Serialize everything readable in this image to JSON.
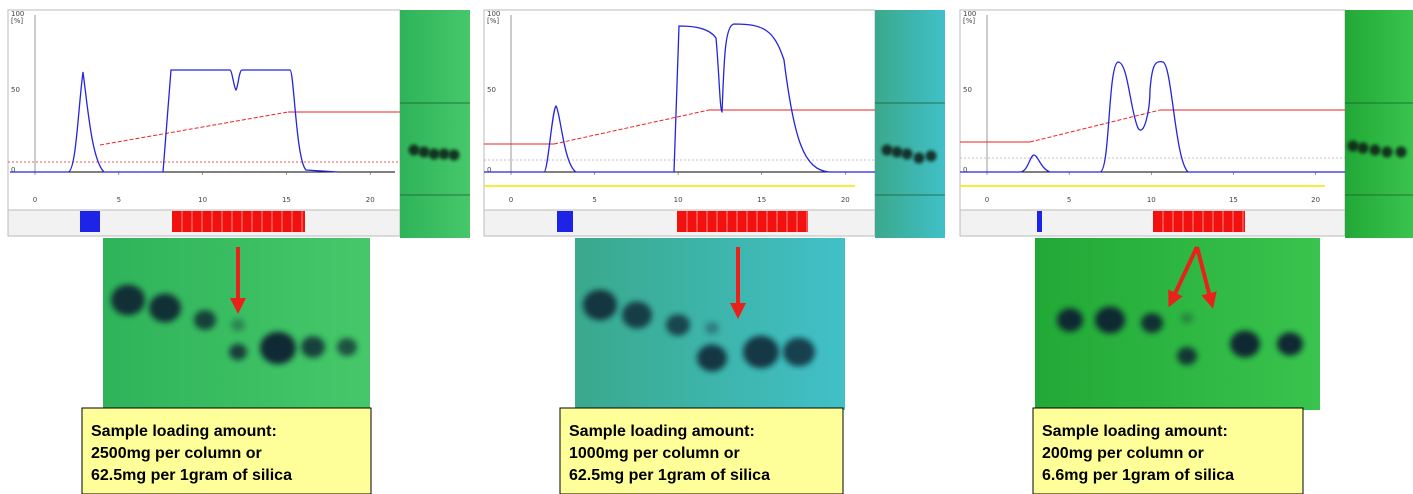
{
  "panels": [
    {
      "y_axis_labels": [
        "100",
        "[%]",
        "50",
        "0"
      ],
      "x_axis_labels": [
        "0",
        "5",
        "10",
        "15",
        "20"
      ],
      "caption": [
        "Sample loading amount:",
        "2500mg per column or",
        "62.5mg per 1gram of silica"
      ]
    },
    {
      "y_axis_labels": [
        "100",
        "[%]",
        "50",
        "0"
      ],
      "x_axis_labels": [
        "0",
        "5",
        "10",
        "15",
        "20"
      ],
      "caption": [
        "Sample loading amount:",
        "1000mg per column or",
        "62.5mg per 1gram of silica"
      ]
    },
    {
      "y_axis_labels": [
        "100",
        "[%]",
        "50",
        "0"
      ],
      "x_axis_labels": [
        "0",
        "5",
        "10",
        "15",
        "20"
      ],
      "caption": [
        "Sample loading amount:",
        "200mg per column or",
        "6.6mg per 1gram of silica"
      ]
    }
  ]
}
